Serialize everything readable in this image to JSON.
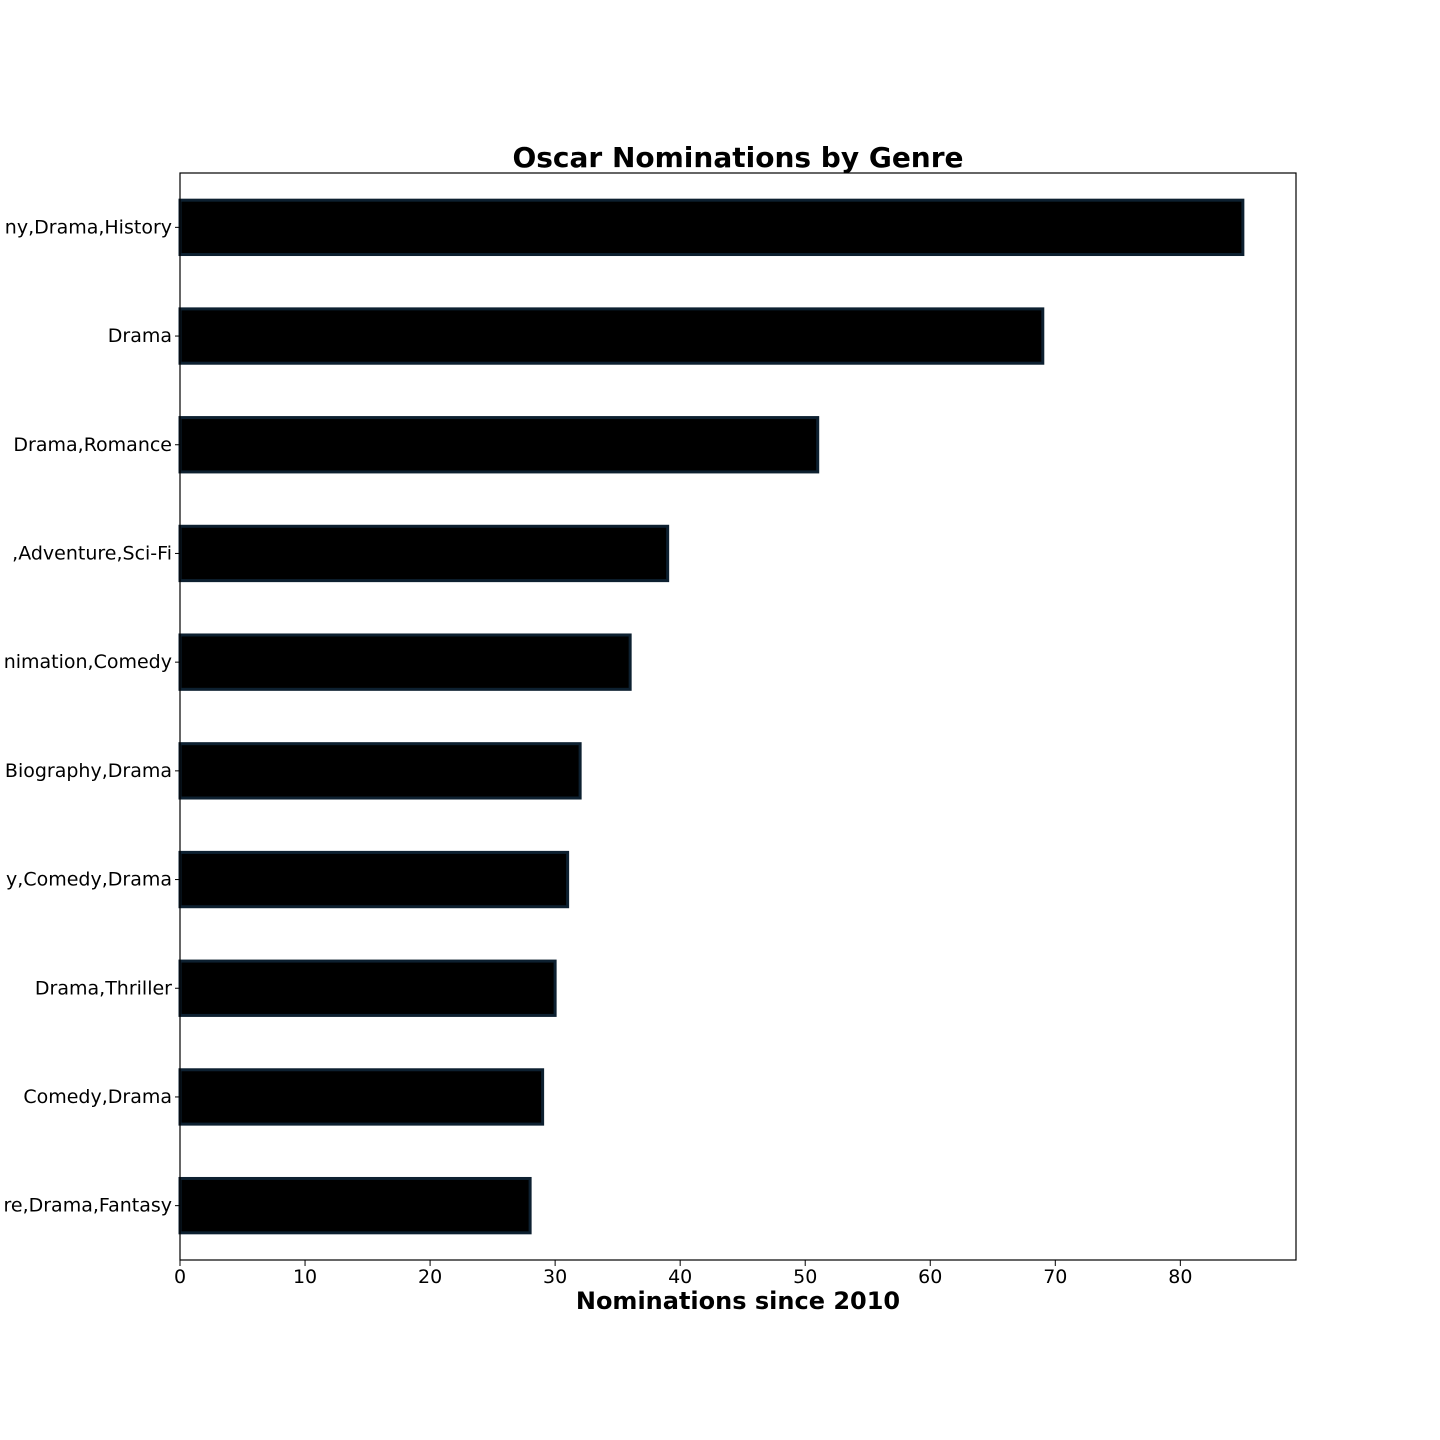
{
  "chart_data": {
    "type": "bar",
    "orientation": "horizontal",
    "title": "Oscar Nominations by Genre",
    "xlabel": "Nominations since 2010",
    "ylabel": "",
    "categories": [
      "ny,Drama,History",
      "Drama",
      "Drama,Romance",
      ",Adventure,Sci-Fi",
      "nimation,Comedy",
      "Biography,Drama",
      "y,Comedy,Drama",
      "Drama,Thriller",
      "Comedy,Drama",
      "re,Drama,Fantasy"
    ],
    "values": [
      85,
      69,
      51,
      39,
      36,
      32,
      31,
      30,
      29,
      28
    ],
    "xlim": [
      0,
      89.25
    ],
    "xticks": [
      "0",
      "10",
      "20",
      "30",
      "40",
      "50",
      "60",
      "70",
      "80"
    ],
    "grid": false,
    "legend": "none",
    "colors": {
      "bar_fill": "#000000",
      "bar_edge": "#0d2030",
      "axis": "#000000",
      "background": "#ffffff"
    }
  }
}
